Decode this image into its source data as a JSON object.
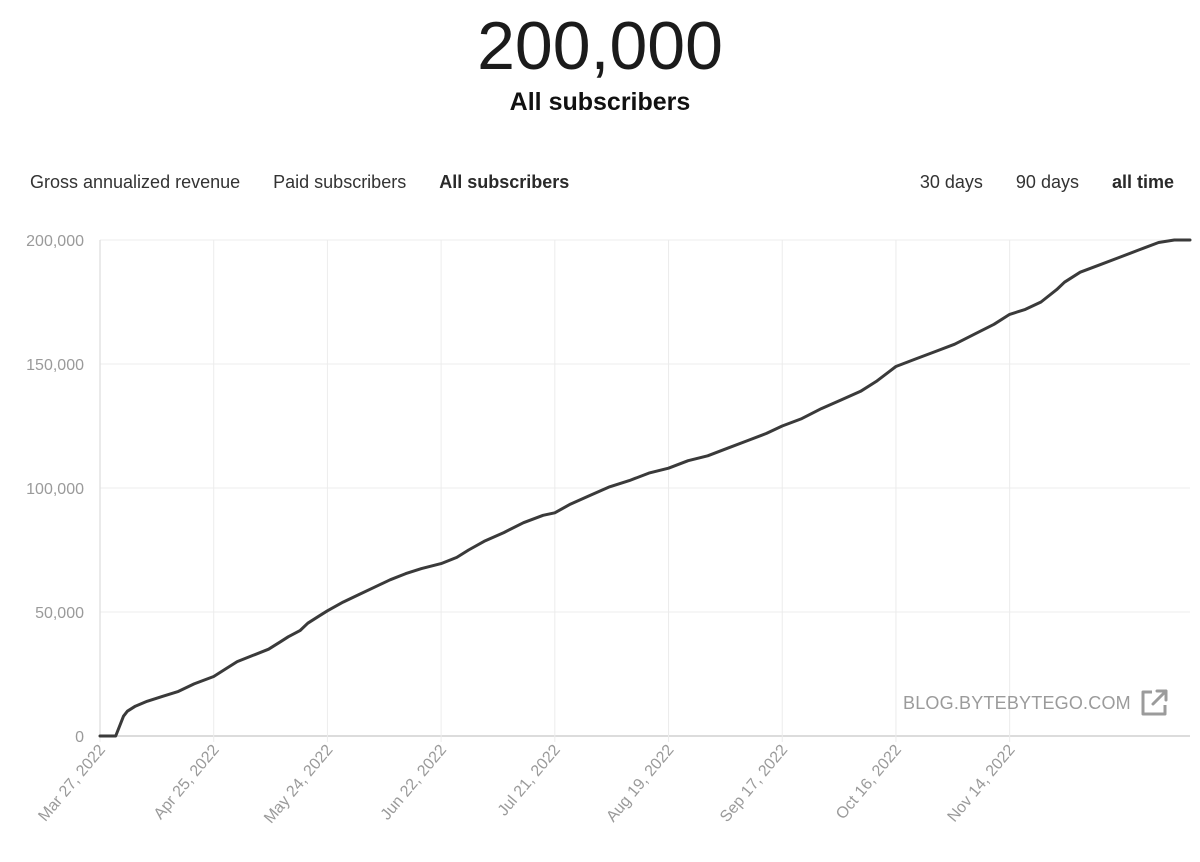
{
  "header": {
    "total": "200,000",
    "label": "All subscribers"
  },
  "metric_tabs": [
    {
      "label": "Gross annualized revenue",
      "active": false
    },
    {
      "label": "Paid subscribers",
      "active": false
    },
    {
      "label": "All subscribers",
      "active": true
    }
  ],
  "range_tabs": [
    {
      "label": "30 days",
      "active": false
    },
    {
      "label": "90 days",
      "active": false
    },
    {
      "label": "all time",
      "active": true
    }
  ],
  "watermark": {
    "text": "BLOG.BYTEBYTEGO.COM",
    "icon": "external-link-icon"
  },
  "colors": {
    "line": "#3a3a3a",
    "grid": "#ececec",
    "axis": "#d0d0d0",
    "ticks": "#9a9a9a"
  },
  "chart_data": {
    "type": "line",
    "title": "",
    "xlabel": "",
    "ylabel": "",
    "ylim": [
      0,
      200000
    ],
    "y_ticks": [
      0,
      50000,
      100000,
      150000,
      200000
    ],
    "y_tick_labels": [
      "0",
      "50,000",
      "100,000",
      "150,000",
      "200,000"
    ],
    "x_tick_labels": [
      "Mar 27, 2022",
      "Apr 25, 2022",
      "May 24, 2022",
      "Jun 22, 2022",
      "Jul 21, 2022",
      "Aug 19, 2022",
      "Sep 17, 2022",
      "Oct 16, 2022",
      "Nov 14, 2022"
    ],
    "xlim": [
      "2022-03-27",
      "2022-12-30"
    ],
    "grid": true,
    "legend": "none",
    "series": [
      {
        "x": [
          "2022-03-27",
          "2022-03-31",
          "2022-04-02",
          "2022-04-03",
          "2022-04-05",
          "2022-04-08",
          "2022-04-12",
          "2022-04-16",
          "2022-04-20",
          "2022-04-25",
          "2022-04-28",
          "2022-05-01",
          "2022-05-05",
          "2022-05-09",
          "2022-05-12",
          "2022-05-14",
          "2022-05-17",
          "2022-05-19",
          "2022-05-22",
          "2022-05-24",
          "2022-05-28",
          "2022-06-01",
          "2022-06-05",
          "2022-06-09",
          "2022-06-13",
          "2022-06-17",
          "2022-06-22",
          "2022-06-26",
          "2022-06-29",
          "2022-07-03",
          "2022-07-08",
          "2022-07-13",
          "2022-07-18",
          "2022-07-21",
          "2022-07-25",
          "2022-07-30",
          "2022-08-04",
          "2022-08-09",
          "2022-08-14",
          "2022-08-19",
          "2022-08-24",
          "2022-08-29",
          "2022-09-03",
          "2022-09-08",
          "2022-09-13",
          "2022-09-17",
          "2022-09-22",
          "2022-09-27",
          "2022-10-02",
          "2022-10-07",
          "2022-10-11",
          "2022-10-16",
          "2022-10-21",
          "2022-10-26",
          "2022-10-31",
          "2022-11-05",
          "2022-11-10",
          "2022-11-14",
          "2022-11-18",
          "2022-11-22",
          "2022-11-26",
          "2022-11-28",
          "2022-12-02",
          "2022-12-07",
          "2022-12-12",
          "2022-12-17",
          "2022-12-22",
          "2022-12-26",
          "2022-12-30"
        ],
        "values": [
          0,
          0,
          8000,
          10000,
          12000,
          14000,
          16000,
          18000,
          21000,
          24000,
          27000,
          30000,
          32500,
          35000,
          38000,
          40000,
          42500,
          45500,
          48500,
          50500,
          54000,
          57000,
          60000,
          63000,
          65500,
          67500,
          69500,
          72000,
          75000,
          78500,
          82000,
          86000,
          89000,
          90000,
          93500,
          97000,
          100500,
          103000,
          106000,
          108000,
          111000,
          113000,
          116000,
          119000,
          122000,
          125000,
          128000,
          132000,
          135500,
          139000,
          143000,
          149000,
          152000,
          155000,
          158000,
          162000,
          166000,
          170000,
          172000,
          175000,
          180000,
          183000,
          187000,
          190000,
          193000,
          196000,
          199000,
          200000,
          200000
        ]
      }
    ]
  }
}
